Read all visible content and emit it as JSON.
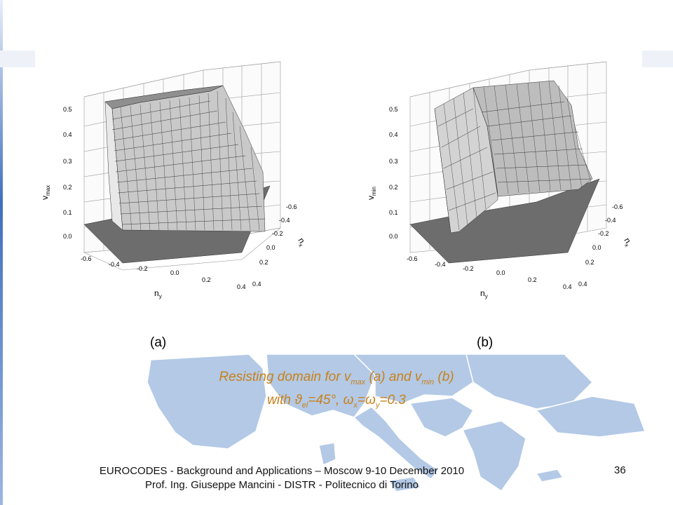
{
  "plots": [
    {
      "zlabel": "v",
      "zlabel_sub": "max",
      "xlabel": "n",
      "xlabel_sub": "y",
      "ylabel": "n",
      "ylabel_sub": "x",
      "z_ticks": [
        "0.0",
        "0.1",
        "0.2",
        "0.3",
        "0.4",
        "0.5"
      ],
      "ny_ticks": [
        "-0.6",
        "-0.4",
        "-0.2",
        "0.0",
        "0.2",
        "0.4"
      ],
      "nx_ticks": [
        "-0.6",
        "-0.4",
        "-0.2",
        "0.0",
        "0.2",
        "0.4"
      ],
      "panel_label": "(a)"
    },
    {
      "zlabel": "v",
      "zlabel_sub": "min",
      "xlabel": "n",
      "xlabel_sub": "y",
      "ylabel": "n",
      "ylabel_sub": "x",
      "z_ticks": [
        "0.0",
        "0.1",
        "0.2",
        "0.3",
        "0.4",
        "0.5"
      ],
      "ny_ticks": [
        "-0.6",
        "-0.4",
        "-0.2",
        "0.0",
        "0.2",
        "0.4"
      ],
      "nx_ticks": [
        "-0.6",
        "-0.4",
        "-0.2",
        "0.0",
        "0.2",
        "0.4"
      ],
      "panel_label": "(b)"
    }
  ],
  "caption": {
    "line1_a": "Resisting domain for v",
    "line1_sub1": "max",
    "line1_b": " (a) and v",
    "line1_sub2": "min",
    "line1_c": " (b)",
    "line2_a": "with ",
    "line2_theta": "ϑ",
    "line2_sub1": "el",
    "line2_b": "=45°, ",
    "line2_omega1": "ω",
    "line2_sub2": "x",
    "line2_eq": "=",
    "line2_omega2": "ω",
    "line2_sub3": "y",
    "line2_c": "=0.3"
  },
  "footer": {
    "line1": "EUROCODES - Background and Applications – Moscow 9-10 December 2010",
    "line2": "Prof. Ing. Giuseppe Mancini - DISTR - Politecnico di Torino",
    "page_number": "36"
  },
  "colors": {
    "caption": "#c8811a",
    "map_fill": "#b3c9e6",
    "accent_bar": "#3f6fbf"
  }
}
